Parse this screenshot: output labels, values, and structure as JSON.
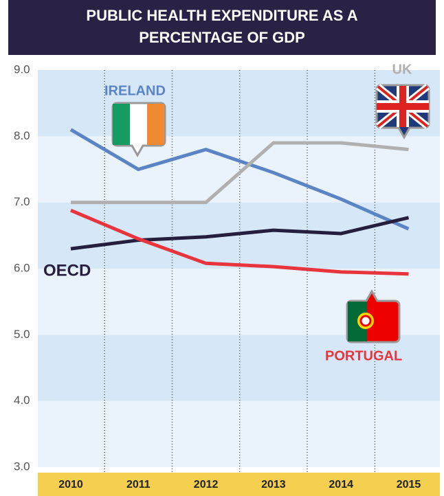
{
  "chart_data": {
    "type": "line",
    "title": "PUBLIC HEALTH EXPENDITURE AS A PERCENTAGE OF GDP",
    "categories": [
      "2010",
      "2011",
      "2012",
      "2013",
      "2014",
      "2015"
    ],
    "series": [
      {
        "name": "IRELAND",
        "color": "#5b84c4",
        "values": [
          8.1,
          7.5,
          7.8,
          7.45,
          7.05,
          6.6
        ]
      },
      {
        "name": "UK",
        "color": "#b0b0b0",
        "values": [
          7.0,
          7.0,
          7.0,
          7.9,
          7.9,
          7.8
        ]
      },
      {
        "name": "OECD",
        "color": "#261e3d",
        "values": [
          6.3,
          6.43,
          6.48,
          6.58,
          6.53,
          6.77
        ]
      },
      {
        "name": "PORTUGAL",
        "color": "#e8343c",
        "values": [
          6.88,
          6.45,
          6.08,
          6.03,
          5.95,
          5.92
        ]
      }
    ],
    "ylim": [
      3,
      9
    ],
    "yticks": [
      {
        "value": 3,
        "label": "3.0"
      },
      {
        "value": 4,
        "label": "4.0"
      },
      {
        "value": 5,
        "label": "5.0"
      },
      {
        "value": 6,
        "label": "6.0"
      },
      {
        "value": 7,
        "label": "7.0"
      },
      {
        "value": 8,
        "label": "8.0"
      },
      {
        "value": 9,
        "label": "9.0"
      }
    ],
    "grid": true
  }
}
